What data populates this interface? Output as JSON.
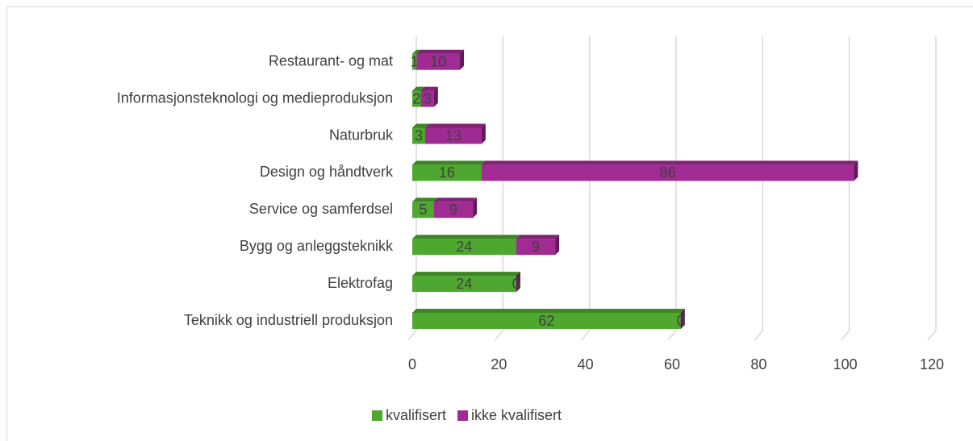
{
  "chart_data": {
    "type": "bar",
    "orientation": "horizontal",
    "stacked": true,
    "three_d": true,
    "categories": [
      "Teknikk og industriell produksjon",
      "Elektrofag",
      "Bygg og anleggsteknikk",
      "Service og samferdsel",
      "Design og håndtverk",
      "Naturbruk",
      "Informasjonsteknologi og medieproduksjon",
      "Restaurant- og mat"
    ],
    "series": [
      {
        "name": "kvalifisert",
        "color": "#4ea72e",
        "values": [
          62,
          24,
          24,
          5,
          16,
          3,
          2,
          1
        ]
      },
      {
        "name": "ikke kvalifisert",
        "color": "#a02b93",
        "values": [
          0,
          0,
          9,
          9,
          86,
          13,
          3,
          10
        ]
      }
    ],
    "xlim": [
      0,
      120
    ],
    "xticks": [
      0,
      20,
      40,
      60,
      80,
      100,
      120
    ],
    "grid": true,
    "legend": "bottom",
    "data_labels": true
  }
}
